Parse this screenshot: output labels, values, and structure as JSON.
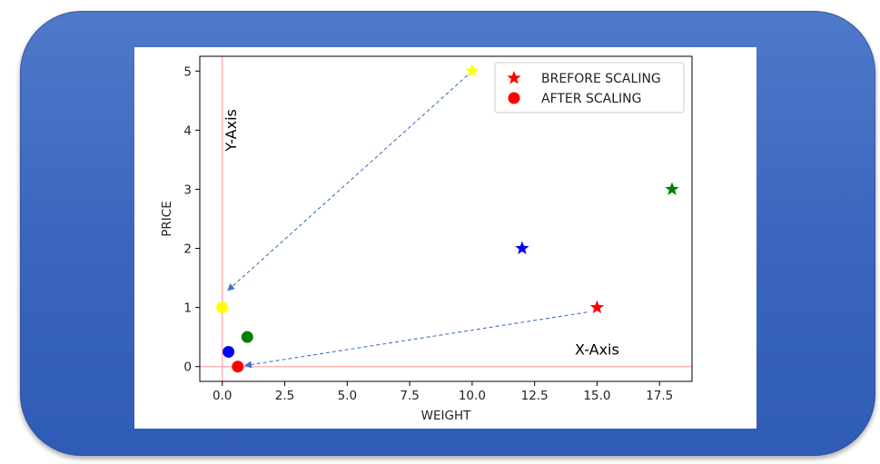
{
  "chart_data": {
    "type": "scatter",
    "xlabel": "WEIGHT",
    "ylabel": "PRICE",
    "xlim": [
      -0.9,
      18.8
    ],
    "ylim": [
      -0.25,
      5.25
    ],
    "x_ticks": [
      0.0,
      2.5,
      5.0,
      7.5,
      10.0,
      12.5,
      15.0,
      17.5
    ],
    "x_tick_labels": [
      "0.0",
      "2.5",
      "5.0",
      "7.5",
      "10.0",
      "12.5",
      "15.0",
      "17.5"
    ],
    "y_ticks": [
      0,
      1,
      2,
      3,
      4,
      5
    ],
    "y_tick_labels": [
      "0",
      "1",
      "2",
      "3",
      "4",
      "5"
    ],
    "grid": false,
    "legend_position": "top-right",
    "legend": [
      {
        "label": "BREFORE SCALING",
        "marker": "star",
        "color": "#ff0000"
      },
      {
        "label": "AFTER SCALING",
        "marker": "circle",
        "color": "#ff0000"
      }
    ],
    "series": [
      {
        "name": "BREFORE SCALING",
        "marker": "star",
        "points": [
          {
            "x": 10.0,
            "y": 5.0,
            "color": "#ffff00"
          },
          {
            "x": 12.0,
            "y": 2.0,
            "color": "#0000ff"
          },
          {
            "x": 15.0,
            "y": 1.0,
            "color": "#ff0000"
          },
          {
            "x": 18.0,
            "y": 3.0,
            "color": "#008000"
          }
        ]
      },
      {
        "name": "AFTER SCALING",
        "marker": "circle",
        "points": [
          {
            "x": 0.0,
            "y": 1.0,
            "color": "#ffff00"
          },
          {
            "x": 0.25,
            "y": 0.25,
            "color": "#0000ff"
          },
          {
            "x": 0.62,
            "y": 0.0,
            "color": "#ff0000"
          },
          {
            "x": 1.0,
            "y": 0.5,
            "color": "#008000"
          }
        ]
      }
    ],
    "reference_lines": [
      {
        "orientation": "horizontal",
        "value": 0,
        "color": "#ffb3b3"
      },
      {
        "orientation": "vertical",
        "value": 0,
        "color": "#ffb3b3"
      }
    ],
    "annotations": [
      {
        "text": "Y-Axis",
        "x": 0.55,
        "y": 4.0,
        "rotation": -90
      },
      {
        "text": "X-Axis",
        "x": 15.0,
        "y": 0.2,
        "rotation": 0
      }
    ],
    "arrows": [
      {
        "from": [
          10.0,
          5.0
        ],
        "to": [
          0.25,
          1.3
        ],
        "color": "#4472c4",
        "style": "dashed"
      },
      {
        "from": [
          14.6,
          0.92
        ],
        "to": [
          0.95,
          0.02
        ],
        "color": "#4472c4",
        "style": "dashed"
      }
    ]
  }
}
